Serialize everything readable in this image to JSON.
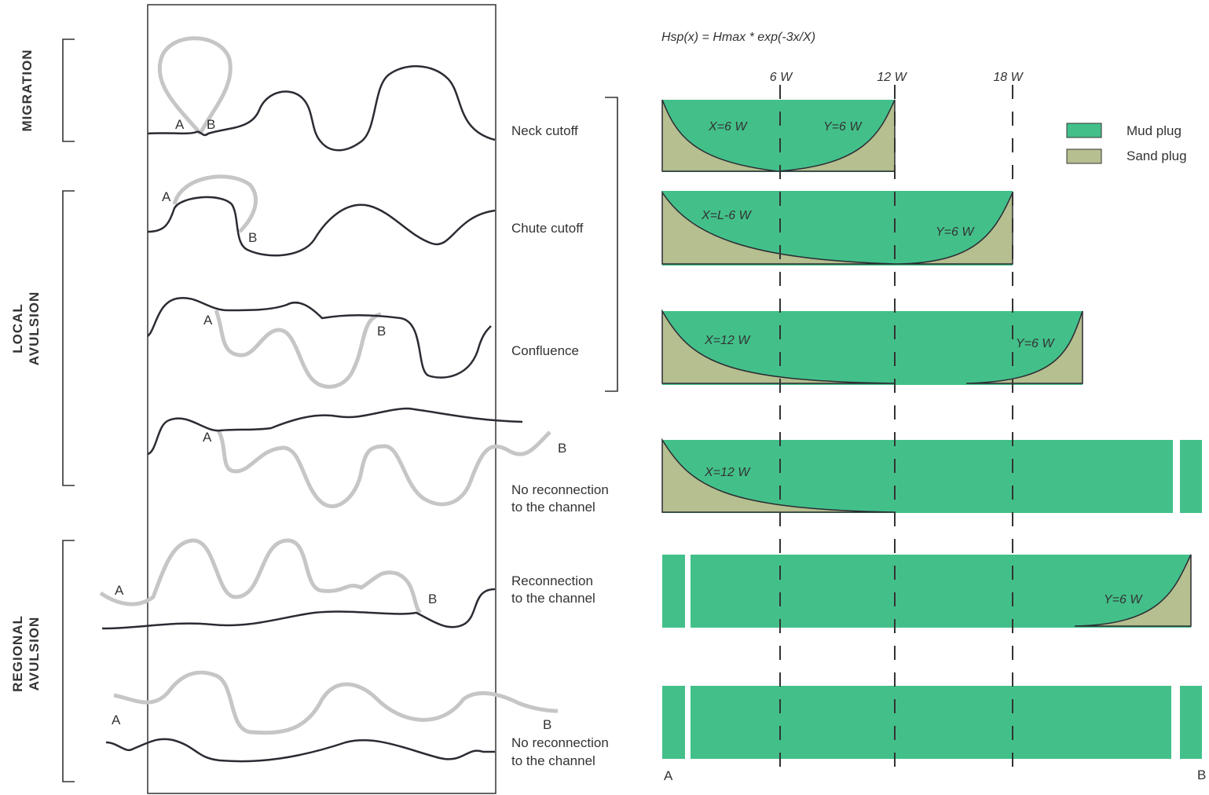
{
  "groups": [
    {
      "label_lines": [
        "MIGRATION"
      ]
    },
    {
      "label_lines": [
        "LOCAL",
        "AVULSION"
      ]
    },
    {
      "label_lines": [
        "REGIONAL",
        "AVULSION"
      ]
    }
  ],
  "rows": [
    {
      "label_lines": [
        "Neck cutoff"
      ],
      "sketch_labels": [
        "A",
        "B"
      ],
      "plug_labels": [
        "X=6 W",
        "Y=6 W"
      ]
    },
    {
      "label_lines": [
        "Chute cutoff"
      ],
      "sketch_labels": [
        "A",
        "B"
      ],
      "plug_labels": [
        "X=L-6 W",
        "Y=6 W"
      ]
    },
    {
      "label_lines": [
        "Confluence"
      ],
      "sketch_labels": [
        "A",
        "B"
      ],
      "plug_labels": [
        "X=12 W",
        "Y=6 W"
      ]
    },
    {
      "label_lines": [
        "No reconnection",
        "to the channel"
      ],
      "sketch_labels": [
        "A",
        "B"
      ],
      "plug_labels": [
        "X=12 W"
      ]
    },
    {
      "label_lines": [
        "Reconnection",
        "to the channel"
      ],
      "sketch_labels": [
        "A",
        "B"
      ],
      "plug_labels": [
        "Y=6 W"
      ]
    },
    {
      "label_lines": [
        "No reconnection",
        "to the channel"
      ],
      "sketch_labels": [
        "A",
        "B"
      ]
    }
  ],
  "formula": "Hsp(x) = Hmax * exp(-3x/X)",
  "axis_labels": [
    "6 W",
    "12 W",
    "18 W"
  ],
  "legend": [
    "Mud plug",
    "Sand plug"
  ],
  "ends": [
    "A",
    "B"
  ]
}
